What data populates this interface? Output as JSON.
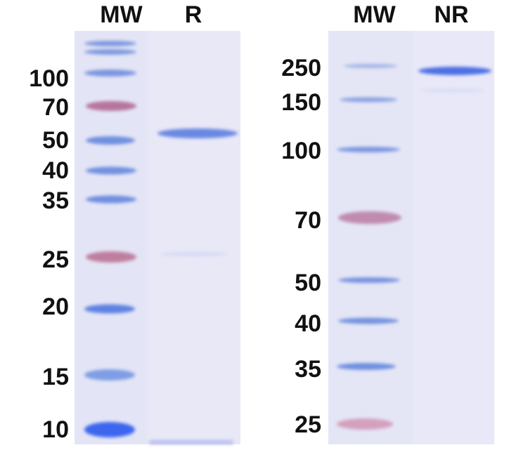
{
  "left_gel": {
    "lanes": [
      "MW",
      "R"
    ],
    "markers": [
      "100",
      "70",
      "50",
      "40",
      "35",
      "25",
      "20",
      "15",
      "10"
    ]
  },
  "right_gel": {
    "lanes": [
      "MW",
      "NR"
    ],
    "markers": [
      "250",
      "150",
      "100",
      "70",
      "50",
      "40",
      "35",
      "25"
    ]
  },
  "colors": {
    "gel_background": "#e6e7f6",
    "blue_band": "#5d7fdc",
    "pink_band": "#c0789e",
    "sample_band": "#4f6fe0"
  }
}
